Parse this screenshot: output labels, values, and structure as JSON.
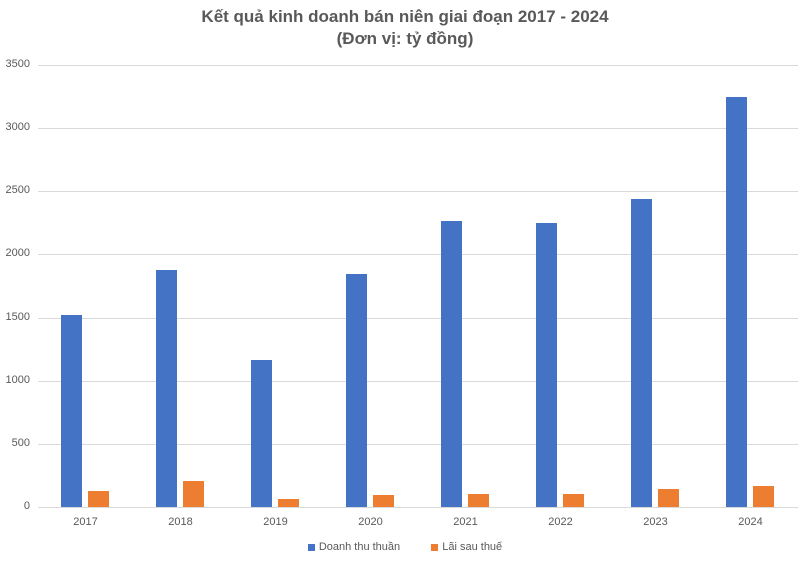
{
  "chart_data": {
    "type": "bar",
    "title": "Kết quả kinh doanh bán niên giai đoạn 2017 - 2024",
    "subtitle": "(Đơn vị: tỷ đồng)",
    "xlabel": "",
    "ylabel": "",
    "ylim": [
      0,
      3500
    ],
    "yticks": [
      0,
      500,
      1000,
      1500,
      2000,
      2500,
      3000,
      3500
    ],
    "grid": true,
    "legend_position": "bottom",
    "categories": [
      "2017",
      "2018",
      "2019",
      "2020",
      "2021",
      "2022",
      "2023",
      "2024"
    ],
    "series": [
      {
        "name": "Doanh thu thuần",
        "color": "#4472c4",
        "values": [
          1520,
          1880,
          1165,
          1849,
          2263,
          2252,
          2437,
          3246
        ]
      },
      {
        "name": "Lãi sau thuế",
        "color": "#ed7d31",
        "values": [
          129,
          203,
          61,
          95,
          100,
          103,
          142,
          166
        ]
      }
    ]
  }
}
